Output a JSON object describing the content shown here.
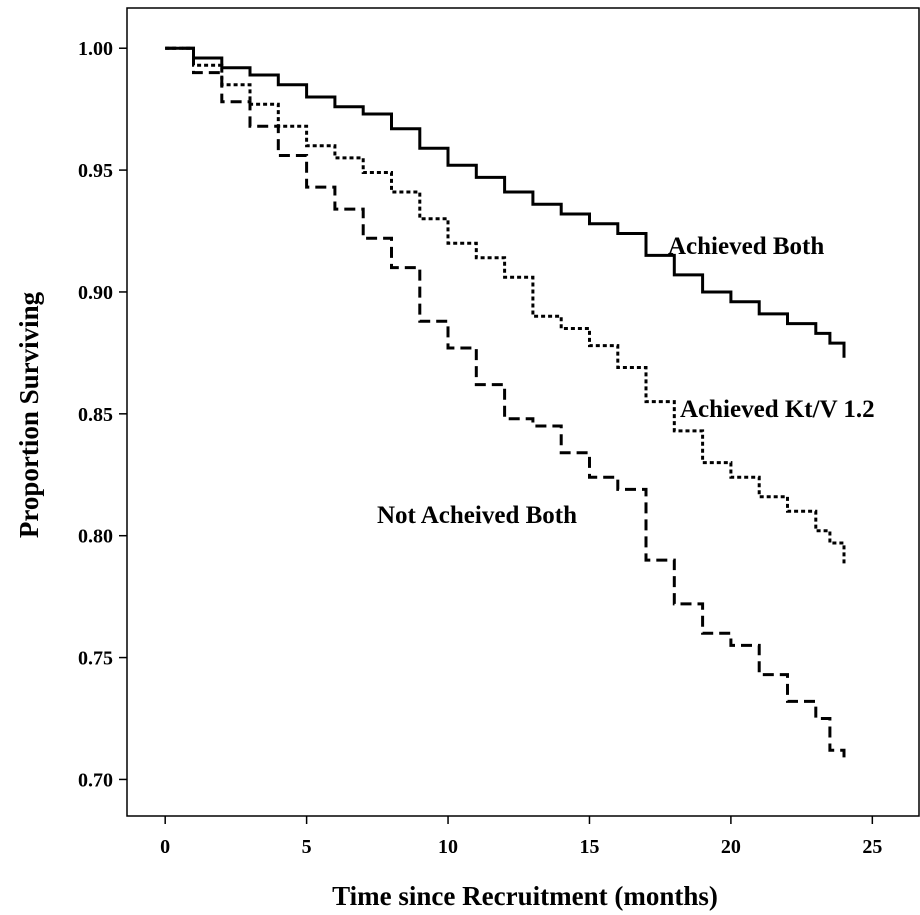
{
  "chart_data": {
    "type": "line",
    "xlabel": "Time since Recruitment (months)",
    "ylabel": "Proportion Surviving",
    "xlim": [
      -1.35,
      26.65
    ],
    "ylim": [
      0.685,
      1.0165
    ],
    "xticks": [
      0,
      5,
      10,
      15,
      20,
      25
    ],
    "yticks": [
      1.0,
      0.95,
      0.9,
      0.85,
      0.8,
      0.75,
      0.7
    ],
    "xtick_labels": [
      "0",
      "5",
      "10",
      "15",
      "20",
      "25"
    ],
    "ytick_labels": [
      "1.00",
      "0.95",
      "0.90",
      "0.85",
      "0.80",
      "0.75",
      "0.70"
    ],
    "grid": false,
    "series": [
      {
        "name": "Achieved Both",
        "style": "solid",
        "x": [
          0,
          1,
          2,
          3,
          4,
          5,
          6,
          7,
          8,
          9,
          10,
          11,
          12,
          13,
          14,
          15,
          16,
          17,
          18,
          19,
          20,
          21,
          22,
          23,
          23.5,
          24
        ],
        "y": [
          1.0,
          0.996,
          0.992,
          0.989,
          0.985,
          0.98,
          0.976,
          0.973,
          0.967,
          0.959,
          0.952,
          0.947,
          0.941,
          0.936,
          0.932,
          0.928,
          0.924,
          0.915,
          0.907,
          0.9,
          0.896,
          0.891,
          0.887,
          0.883,
          0.879,
          0.873
        ]
      },
      {
        "name": "Achieved Kt/V 1.2",
        "style": "dotted",
        "x": [
          0,
          1,
          2,
          3,
          4,
          5,
          6,
          7,
          8,
          9,
          10,
          11,
          12,
          13,
          14,
          15,
          16,
          17,
          18,
          19,
          20,
          21,
          22,
          23,
          23.5,
          24
        ],
        "y": [
          1.0,
          0.993,
          0.985,
          0.977,
          0.968,
          0.96,
          0.955,
          0.949,
          0.941,
          0.93,
          0.92,
          0.914,
          0.906,
          0.89,
          0.885,
          0.878,
          0.869,
          0.855,
          0.843,
          0.83,
          0.824,
          0.816,
          0.81,
          0.802,
          0.797,
          0.788
        ]
      },
      {
        "name": "Not Acheived Both",
        "style": "dashed",
        "x": [
          0,
          1,
          2,
          3,
          4,
          5,
          6,
          7,
          8,
          9,
          10,
          11,
          12,
          13,
          14,
          15,
          16,
          17,
          18,
          19,
          20,
          21,
          22,
          23,
          23.5,
          24
        ],
        "y": [
          1.0,
          0.99,
          0.978,
          0.968,
          0.956,
          0.943,
          0.934,
          0.922,
          0.91,
          0.888,
          0.877,
          0.862,
          0.848,
          0.845,
          0.834,
          0.824,
          0.819,
          0.79,
          0.772,
          0.76,
          0.755,
          0.743,
          0.732,
          0.725,
          0.712,
          0.709
        ]
      }
    ],
    "annotations": [
      "Achieved Both",
      "Achieved Kt/V 1.2",
      "Not Acheived Both"
    ]
  }
}
